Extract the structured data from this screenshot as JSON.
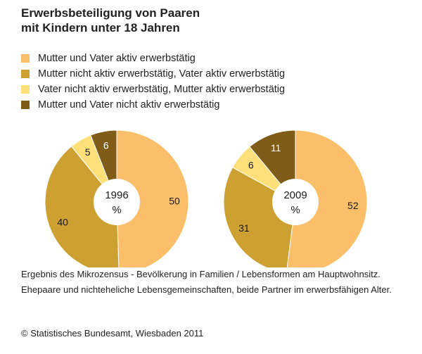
{
  "title": {
    "line1": "Erwerbsbeteiligung von Paaren",
    "line2": "mit Kindern unter 18 Jahren"
  },
  "colors": {
    "series": [
      "#fbbf6a",
      "#cda032",
      "#fde07a",
      "#7f5c18"
    ],
    "label_dark": "#1a1a1a",
    "label_light": "#ffffff"
  },
  "chart_data": [
    {
      "type": "pie",
      "center_label": "1996",
      "unit": "%",
      "categories": [
        "Mutter und Vater aktiv erwerbstätig",
        "Mutter nicht aktiv erwerbstätig, Vater aktiv erwerbstätig",
        "Vater nicht aktiv erwerbstätig, Mutter aktiv erwerbstätig",
        "Mutter und Vater nicht aktiv erwerbstätig"
      ],
      "values": [
        50,
        40,
        5,
        6
      ]
    },
    {
      "type": "pie",
      "center_label": "2009",
      "unit": "%",
      "categories": [
        "Mutter und Vater aktiv erwerbstätig",
        "Mutter nicht aktiv erwerbstätig, Vater aktiv erwerbstätig",
        "Vater nicht aktiv erwerbstätig, Mutter aktiv erwerbstätig",
        "Mutter und Vater nicht aktiv erwerbstätig"
      ],
      "values": [
        52,
        31,
        6,
        11
      ]
    }
  ],
  "legend": [
    "Mutter und Vater aktiv erwerbstätig",
    "Mutter nicht aktiv erwerbstätig, Vater aktiv erwerbstätig",
    "Vater nicht aktiv erwerbstätig, Mutter aktiv erwerbstätig",
    "Mutter und Vater nicht aktiv erwerbstätig"
  ],
  "notes": {
    "note1": "Ergebnis des Mikrozensus - Bevölkerung in Familien / Lebensformen am Hauptwohnsitz.",
    "note2": "Ehepaare und nichteheliche Lebensgemeinschaften, beide Partner im erwerbsfähigen Alter."
  },
  "copyright": "© Statistisches Bundesamt, Wiesbaden 2011"
}
